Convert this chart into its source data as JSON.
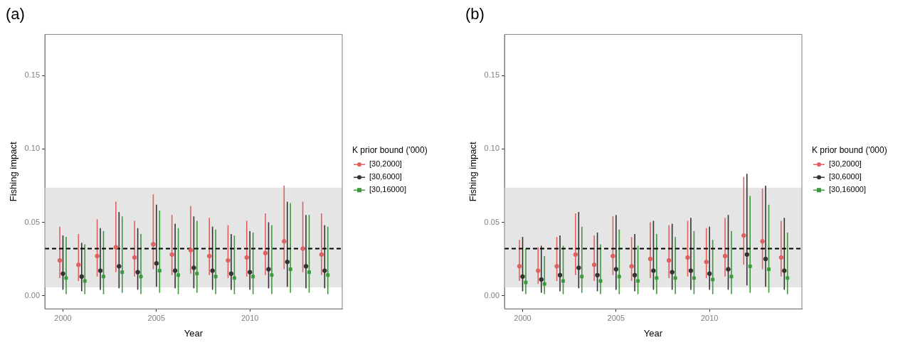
{
  "chart_data": [
    {
      "type": "scatter",
      "title": "(a)",
      "xlabel": "Year",
      "ylabel": "Fishing impact",
      "legend_title": "K prior bound ('000)",
      "legend": "right",
      "grid": false,
      "xlim": [
        1999.03,
        2014.94
      ],
      "xticks": [
        2000,
        2005,
        2010
      ],
      "ylim": [
        -0.009,
        0.178
      ],
      "yticks": [
        {
          "value": 0,
          "label": "0.00"
        },
        {
          "value": 0.05,
          "label": "0.05"
        },
        {
          "value": 0.1,
          "label": "0.10"
        },
        {
          "value": 0.15,
          "label": "0.15"
        }
      ],
      "bands": [
        {
          "axis": "y",
          "from": 0.0056,
          "to": 0.0736,
          "color": "#e5e5e5"
        }
      ],
      "ref_lines": [
        {
          "axis": "y",
          "value": 0.032,
          "color": "#000000",
          "line_style": "dashed"
        }
      ],
      "series": [
        {
          "name": "[30,2000]",
          "color": "#e06060",
          "marker": "circle",
          "x": [
            1999.83,
            2000.83,
            2001.83,
            2002.83,
            2003.83,
            2004.83,
            2005.83,
            2006.83,
            2007.83,
            2008.83,
            2009.83,
            2010.83,
            2011.83,
            2012.83,
            2013.83
          ],
          "values": [
            0.024,
            0.021,
            0.027,
            0.033,
            0.026,
            0.035,
            0.028,
            0.031,
            0.027,
            0.024,
            0.026,
            0.029,
            0.037,
            0.032,
            0.028
          ],
          "errors": [
            [
              0.012,
              0.047
            ],
            [
              0.01,
              0.042
            ],
            [
              0.013,
              0.052
            ],
            [
              0.016,
              0.064
            ],
            [
              0.013,
              0.051
            ],
            [
              0.018,
              0.069
            ],
            [
              0.014,
              0.055
            ],
            [
              0.015,
              0.061
            ],
            [
              0.014,
              0.053
            ],
            [
              0.012,
              0.048
            ],
            [
              0.013,
              0.051
            ],
            [
              0.014,
              0.056
            ],
            [
              0.018,
              0.075
            ],
            [
              0.016,
              0.064
            ],
            [
              0.014,
              0.056
            ]
          ]
        },
        {
          "name": "[30,6000]",
          "color": "#333333",
          "marker": "circle",
          "x": [
            2000,
            2001,
            2002,
            2003,
            2004,
            2005,
            2006,
            2007,
            2008,
            2009,
            2010,
            2011,
            2012,
            2013,
            2014
          ],
          "values": [
            0.015,
            0.013,
            0.017,
            0.02,
            0.016,
            0.022,
            0.017,
            0.019,
            0.017,
            0.015,
            0.016,
            0.018,
            0.023,
            0.02,
            0.017
          ],
          "errors": [
            [
              0.004,
              0.041
            ],
            [
              0.003,
              0.036
            ],
            [
              0.004,
              0.046
            ],
            [
              0.005,
              0.057
            ],
            [
              0.004,
              0.046
            ],
            [
              0.006,
              0.062
            ],
            [
              0.005,
              0.049
            ],
            [
              0.005,
              0.054
            ],
            [
              0.004,
              0.047
            ],
            [
              0.004,
              0.042
            ],
            [
              0.004,
              0.044
            ],
            [
              0.005,
              0.05
            ],
            [
              0.006,
              0.064
            ],
            [
              0.005,
              0.055
            ],
            [
              0.005,
              0.048
            ]
          ]
        },
        {
          "name": "[30,16000]",
          "color": "#3a9a3a",
          "marker": "square",
          "x": [
            2000.17,
            2001.17,
            2002.17,
            2003.17,
            2004.17,
            2005.17,
            2006.17,
            2007.17,
            2008.17,
            2009.17,
            2010.17,
            2011.17,
            2012.17,
            2013.17,
            2014.17
          ],
          "values": [
            0.012,
            0.01,
            0.013,
            0.016,
            0.013,
            0.017,
            0.014,
            0.015,
            0.013,
            0.012,
            0.013,
            0.014,
            0.018,
            0.016,
            0.014
          ],
          "errors": [
            [
              0.001,
              0.04
            ],
            [
              0.001,
              0.035
            ],
            [
              0.001,
              0.044
            ],
            [
              0.002,
              0.054
            ],
            [
              0.001,
              0.042
            ],
            [
              0.002,
              0.058
            ],
            [
              0.001,
              0.046
            ],
            [
              0.002,
              0.051
            ],
            [
              0.001,
              0.045
            ],
            [
              0.001,
              0.041
            ],
            [
              0.001,
              0.043
            ],
            [
              0.001,
              0.048
            ],
            [
              0.002,
              0.063
            ],
            [
              0.002,
              0.055
            ],
            [
              0.001,
              0.047
            ]
          ]
        }
      ]
    },
    {
      "type": "scatter",
      "title": "(b)",
      "xlabel": "Year",
      "ylabel": "Fishing impact",
      "legend_title": "K prior bound ('000)",
      "legend": "right",
      "grid": false,
      "xlim": [
        1999.03,
        2014.94
      ],
      "xticks": [
        2000,
        2005,
        2010
      ],
      "ylim": [
        -0.009,
        0.178
      ],
      "yticks": [
        {
          "value": 0,
          "label": "0.00"
        },
        {
          "value": 0.05,
          "label": "0.05"
        },
        {
          "value": 0.1,
          "label": "0.10"
        },
        {
          "value": 0.15,
          "label": "0.15"
        }
      ],
      "bands": [
        {
          "axis": "y",
          "from": 0.0056,
          "to": 0.0736,
          "color": "#e5e5e5"
        }
      ],
      "ref_lines": [
        {
          "axis": "y",
          "value": 0.032,
          "color": "#000000",
          "line_style": "dashed"
        }
      ],
      "series": [
        {
          "name": "[30,2000]",
          "color": "#e06060",
          "marker": "circle",
          "x": [
            1999.83,
            2000.83,
            2001.83,
            2002.83,
            2003.83,
            2004.83,
            2005.83,
            2006.83,
            2007.83,
            2008.83,
            2009.83,
            2010.83,
            2011.83,
            2012.83,
            2013.83
          ],
          "values": [
            0.02,
            0.017,
            0.02,
            0.028,
            0.021,
            0.027,
            0.02,
            0.025,
            0.024,
            0.026,
            0.023,
            0.027,
            0.041,
            0.037,
            0.026
          ],
          "errors": [
            [
              0.01,
              0.038
            ],
            [
              0.008,
              0.033
            ],
            [
              0.01,
              0.04
            ],
            [
              0.014,
              0.056
            ],
            [
              0.01,
              0.041
            ],
            [
              0.014,
              0.054
            ],
            [
              0.01,
              0.04
            ],
            [
              0.012,
              0.05
            ],
            [
              0.012,
              0.048
            ],
            [
              0.013,
              0.051
            ],
            [
              0.012,
              0.046
            ],
            [
              0.013,
              0.053
            ],
            [
              0.021,
              0.081
            ],
            [
              0.018,
              0.073
            ],
            [
              0.013,
              0.051
            ]
          ]
        },
        {
          "name": "[30,6000]",
          "color": "#333333",
          "marker": "circle",
          "x": [
            2000,
            2001,
            2002,
            2003,
            2004,
            2005,
            2006,
            2007,
            2008,
            2009,
            2010,
            2011,
            2012,
            2013,
            2014
          ],
          "values": [
            0.013,
            0.011,
            0.014,
            0.019,
            0.014,
            0.018,
            0.014,
            0.017,
            0.016,
            0.017,
            0.015,
            0.018,
            0.028,
            0.025,
            0.017
          ],
          "errors": [
            [
              0.003,
              0.04
            ],
            [
              0.002,
              0.034
            ],
            [
              0.003,
              0.041
            ],
            [
              0.005,
              0.057
            ],
            [
              0.003,
              0.043
            ],
            [
              0.004,
              0.055
            ],
            [
              0.003,
              0.042
            ],
            [
              0.004,
              0.051
            ],
            [
              0.004,
              0.049
            ],
            [
              0.004,
              0.053
            ],
            [
              0.004,
              0.047
            ],
            [
              0.004,
              0.055
            ],
            [
              0.007,
              0.083
            ],
            [
              0.006,
              0.075
            ],
            [
              0.004,
              0.053
            ]
          ]
        },
        {
          "name": "[30,16000]",
          "color": "#3a9a3a",
          "marker": "square",
          "x": [
            2000.17,
            2001.17,
            2002.17,
            2003.17,
            2004.17,
            2005.17,
            2006.17,
            2007.17,
            2008.17,
            2009.17,
            2010.17,
            2011.17,
            2012.17,
            2013.17,
            2014.17
          ],
          "values": [
            0.009,
            0.008,
            0.01,
            0.013,
            0.01,
            0.013,
            0.01,
            0.012,
            0.012,
            0.012,
            0.011,
            0.013,
            0.02,
            0.018,
            0.012
          ],
          "errors": [
            [
              0.001,
              0.032
            ],
            [
              0.001,
              0.027
            ],
            [
              0.001,
              0.034
            ],
            [
              0.002,
              0.047
            ],
            [
              0.001,
              0.035
            ],
            [
              0.001,
              0.045
            ],
            [
              0.001,
              0.034
            ],
            [
              0.001,
              0.042
            ],
            [
              0.001,
              0.04
            ],
            [
              0.001,
              0.044
            ],
            [
              0.001,
              0.038
            ],
            [
              0.001,
              0.044
            ],
            [
              0.002,
              0.068
            ],
            [
              0.002,
              0.062
            ],
            [
              0.001,
              0.043
            ]
          ]
        }
      ]
    }
  ]
}
